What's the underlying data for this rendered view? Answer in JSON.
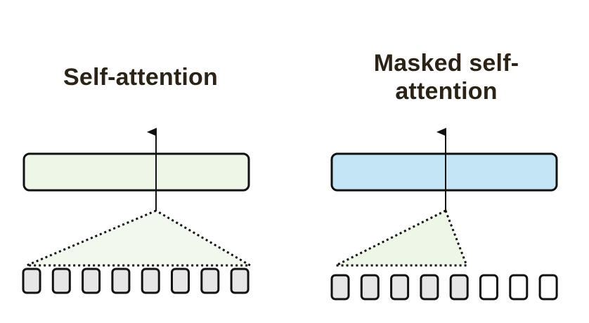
{
  "panels": {
    "left": {
      "title": "Self-attention",
      "bar_color": "#eef6e8",
      "triangle_color": "#f3f8ef",
      "token_count": 8,
      "attended_tokens": 8,
      "attended_fill": "#e6e6e6",
      "unattended_fill": "#ffffff"
    },
    "right": {
      "title": "Masked self-\nattention",
      "bar_color": "#c3e5f6",
      "triangle_color": "#eef6e8",
      "token_count": 8,
      "attended_tokens": 5,
      "attended_fill": "#e6e6e6",
      "unattended_fill": "#ffffff"
    }
  },
  "colors": {
    "stroke": "#111111",
    "title_text": "#2b2416"
  }
}
